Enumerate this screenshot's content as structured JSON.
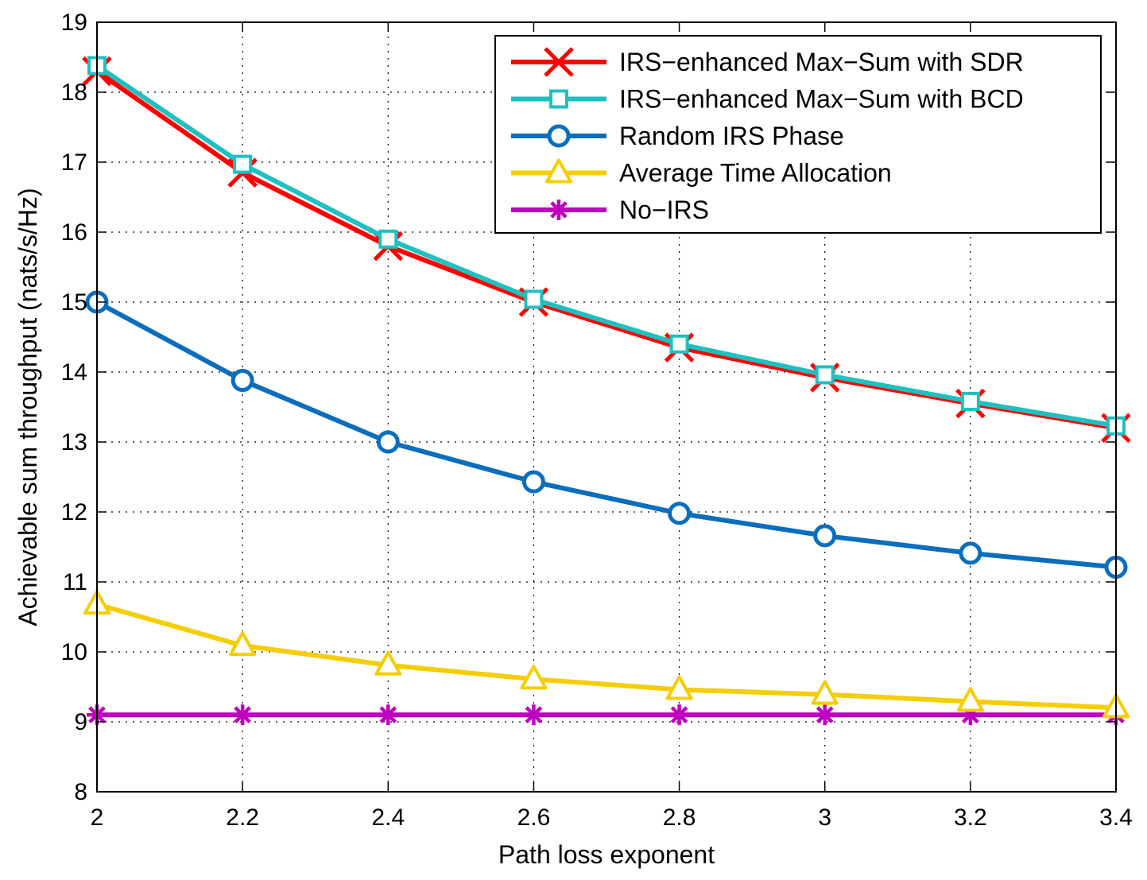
{
  "chart_data": {
    "type": "line",
    "title": "",
    "xlabel": "Path loss exponent",
    "ylabel": "Achievable sum throughput (nats/s/Hz)",
    "xlim": [
      2,
      3.4
    ],
    "ylim": [
      8,
      19
    ],
    "xticks": [
      "2",
      "2.2",
      "2.4",
      "2.6",
      "2.8",
      "3",
      "3.2",
      "3.4"
    ],
    "yticks": [
      "8",
      "9",
      "10",
      "11",
      "12",
      "13",
      "14",
      "15",
      "16",
      "17",
      "18",
      "19"
    ],
    "grid": true,
    "legend_position": "top-right",
    "x": [
      2,
      2.2,
      2.4,
      2.6,
      2.8,
      3,
      3.2,
      3.4
    ],
    "series": [
      {
        "name": "IRS−enhanced Max−Sum with SDR",
        "color": "#ff0000",
        "marker": "x",
        "values": [
          18.3,
          16.85,
          15.8,
          15.0,
          14.35,
          13.92,
          13.55,
          13.2
        ]
      },
      {
        "name": "IRS−enhanced Max−Sum with BCD",
        "color": "#1ec0c0",
        "marker": "square",
        "values": [
          18.38,
          16.97,
          15.9,
          15.04,
          14.4,
          13.96,
          13.58,
          13.23
        ]
      },
      {
        "name": "Random IRS Phase",
        "color": "#0a6ebd",
        "marker": "circle",
        "values": [
          15.0,
          13.88,
          13.0,
          12.43,
          11.98,
          11.66,
          11.41,
          11.21
        ]
      },
      {
        "name": "Average Time Allocation",
        "color": "#f5cd00",
        "marker": "triangle",
        "values": [
          10.68,
          10.09,
          9.81,
          9.61,
          9.46,
          9.39,
          9.29,
          9.2
        ]
      },
      {
        "name": "No−IRS",
        "color": "#c000c0",
        "marker": "star",
        "values": [
          9.1,
          9.1,
          9.1,
          9.1,
          9.1,
          9.1,
          9.1,
          9.1
        ]
      }
    ]
  }
}
